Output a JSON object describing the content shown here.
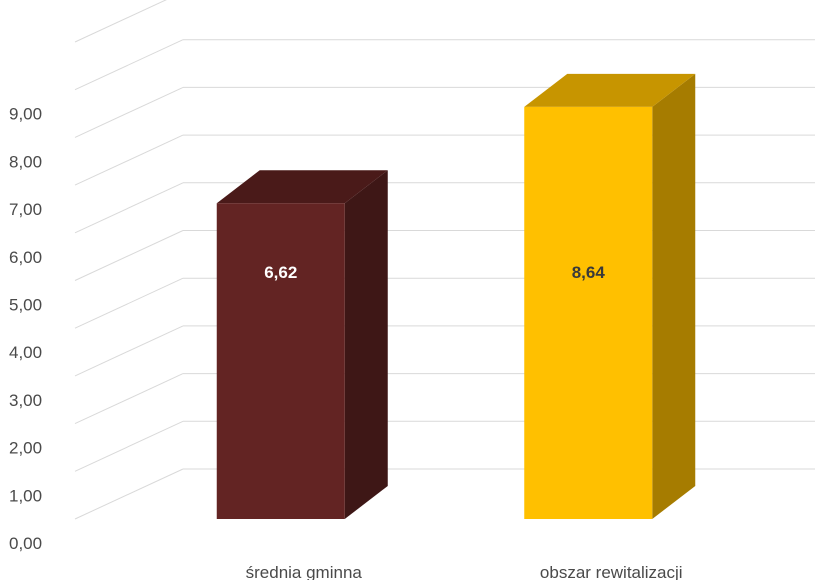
{
  "chart_data": {
    "type": "bar",
    "title": "",
    "xlabel": "",
    "ylabel": "",
    "categories": [
      "średnia gminna",
      "obszar rewitalizacji"
    ],
    "values": [
      6.62,
      8.64
    ],
    "data_labels": [
      "6,62",
      "8,64"
    ],
    "ylim": [
      0,
      9
    ],
    "yticks": [
      0,
      1,
      2,
      3,
      4,
      5,
      6,
      7,
      8,
      9
    ],
    "ytick_labels": [
      "0,00",
      "1,00",
      "2,00",
      "3,00",
      "4,00",
      "5,00",
      "6,00",
      "7,00",
      "8,00",
      "9,00"
    ],
    "grid": true,
    "legend": "none",
    "style": "3d-column",
    "colors": {
      "bars": [
        {
          "front": "#632423",
          "top": "#4a1a19",
          "side": "#3e1716",
          "label": "#ffffff"
        },
        {
          "front": "#ffc000",
          "top": "#c79500",
          "side": "#a67c00",
          "label": "#3a3a3a"
        }
      ],
      "grid": "#d9d9d9",
      "text": "#4a4a4a"
    }
  }
}
